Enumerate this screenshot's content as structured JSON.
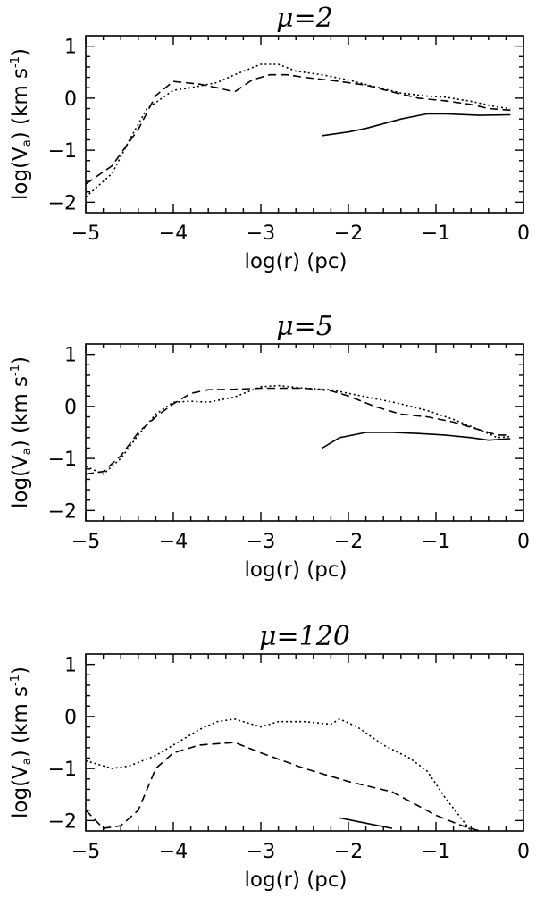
{
  "chart_data": [
    {
      "type": "line",
      "title": "μ=2",
      "xlabel": "log(r)  (pc)",
      "ylabel": "log(V",
      "ylabel_sub": "a",
      "ylabel_tail": ")  (km s",
      "ylabel_sup": "-1",
      "ylabel_end": ")",
      "xlim": [
        -5,
        0
      ],
      "ylim": [
        -2.2,
        1.2
      ],
      "xticks": [
        -5,
        -4,
        -3,
        -2,
        -1,
        0
      ],
      "xtick_labels": [
        "−5",
        "−4",
        "−3",
        "−2",
        "−1",
        "0"
      ],
      "yticks": [
        -2,
        -1,
        0,
        1
      ],
      "ytick_labels": [
        "−2",
        "−1",
        "0",
        "1"
      ],
      "grid": false,
      "series": [
        {
          "style": "solid",
          "x": [
            -2.3,
            -2.0,
            -1.8,
            -1.4,
            -1.1,
            -0.9,
            -0.5,
            -0.15
          ],
          "y": [
            -0.72,
            -0.65,
            -0.58,
            -0.4,
            -0.3,
            -0.3,
            -0.33,
            -0.32
          ]
        },
        {
          "style": "dashed",
          "x": [
            -5.0,
            -4.7,
            -4.4,
            -4.2,
            -4.0,
            -3.7,
            -3.5,
            -3.3,
            -3.1,
            -2.9,
            -2.7,
            -2.5,
            -2.1,
            -1.8,
            -1.5,
            -1.2,
            -0.9,
            -0.6,
            -0.4,
            -0.15
          ],
          "y": [
            -1.65,
            -1.3,
            -0.6,
            0.05,
            0.32,
            0.27,
            0.2,
            0.12,
            0.35,
            0.45,
            0.45,
            0.4,
            0.32,
            0.25,
            0.12,
            0.0,
            -0.05,
            -0.12,
            -0.2,
            -0.23
          ]
        },
        {
          "style": "dotted",
          "x": [
            -5.0,
            -4.7,
            -4.5,
            -4.3,
            -4.0,
            -3.8,
            -3.5,
            -3.3,
            -3.0,
            -2.8,
            -2.6,
            -2.3,
            -2.0,
            -1.7,
            -1.4,
            -1.1,
            -0.9,
            -0.6,
            -0.3,
            -0.15
          ],
          "y": [
            -1.9,
            -1.45,
            -0.8,
            -0.2,
            0.15,
            0.2,
            0.3,
            0.45,
            0.65,
            0.65,
            0.52,
            0.45,
            0.35,
            0.22,
            0.1,
            0.04,
            0.02,
            -0.06,
            -0.17,
            -0.2
          ]
        }
      ]
    },
    {
      "type": "line",
      "title": "μ=5",
      "xlabel": "log(r)  (pc)",
      "ylabel": "log(V",
      "ylabel_sub": "a",
      "ylabel_tail": ")  (km s",
      "ylabel_sup": "-1",
      "ylabel_end": ")",
      "xlim": [
        -5,
        0
      ],
      "ylim": [
        -2.2,
        1.2
      ],
      "xticks": [
        -5,
        -4,
        -3,
        -2,
        -1,
        0
      ],
      "xtick_labels": [
        "−5",
        "−4",
        "−3",
        "−2",
        "−1",
        "0"
      ],
      "yticks": [
        -2,
        -1,
        0,
        1
      ],
      "ytick_labels": [
        "−2",
        "−1",
        "0",
        "1"
      ],
      "grid": false,
      "series": [
        {
          "style": "solid",
          "x": [
            -2.3,
            -2.1,
            -1.8,
            -1.5,
            -1.2,
            -0.9,
            -0.6,
            -0.4,
            -0.15
          ],
          "y": [
            -0.8,
            -0.6,
            -0.5,
            -0.5,
            -0.52,
            -0.55,
            -0.6,
            -0.65,
            -0.62
          ]
        },
        {
          "style": "dashed",
          "x": [
            -5.0,
            -4.8,
            -4.6,
            -4.4,
            -4.2,
            -4.0,
            -3.8,
            -3.6,
            -3.3,
            -3.0,
            -2.8,
            -2.5,
            -2.2,
            -2.0,
            -1.7,
            -1.4,
            -1.1,
            -0.8,
            -0.5,
            -0.3,
            -0.15
          ],
          "y": [
            -1.3,
            -1.25,
            -0.95,
            -0.5,
            -0.2,
            0.05,
            0.25,
            0.32,
            0.33,
            0.35,
            0.35,
            0.35,
            0.3,
            0.2,
            0.0,
            -0.15,
            -0.2,
            -0.3,
            -0.45,
            -0.55,
            -0.55
          ]
        },
        {
          "style": "dotted",
          "x": [
            -5.0,
            -4.8,
            -4.6,
            -4.4,
            -4.2,
            -4.0,
            -3.8,
            -3.6,
            -3.3,
            -3.0,
            -2.8,
            -2.5,
            -2.2,
            -2.0,
            -1.7,
            -1.4,
            -1.1,
            -0.8,
            -0.5,
            -0.3,
            -0.15
          ],
          "y": [
            -1.15,
            -1.3,
            -1.0,
            -0.55,
            -0.15,
            0.08,
            0.1,
            0.08,
            0.18,
            0.38,
            0.4,
            0.35,
            0.32,
            0.25,
            0.15,
            0.05,
            -0.08,
            -0.25,
            -0.45,
            -0.6,
            -0.58
          ]
        }
      ]
    },
    {
      "type": "line",
      "title": "μ=120",
      "xlabel": "log(r)  (pc)",
      "ylabel": "log(V",
      "ylabel_sub": "a",
      "ylabel_tail": ")  (km s",
      "ylabel_sup": "-1",
      "ylabel_end": ")",
      "xlim": [
        -5,
        0
      ],
      "ylim": [
        -2.2,
        1.2
      ],
      "xticks": [
        -5,
        -4,
        -3,
        -2,
        -1,
        0
      ],
      "xtick_labels": [
        "−5",
        "−4",
        "−3",
        "−2",
        "−1",
        "0"
      ],
      "yticks": [
        -2,
        -1,
        0,
        1
      ],
      "ytick_labels": [
        "−2",
        "−1",
        "0",
        "1"
      ],
      "grid": false,
      "series": [
        {
          "style": "solid",
          "x": [
            -2.1,
            -1.8,
            -1.5
          ],
          "y": [
            -1.95,
            -2.05,
            -2.15
          ]
        },
        {
          "style": "dashed",
          "x": [
            -5.0,
            -4.8,
            -4.6,
            -4.4,
            -4.2,
            -4.0,
            -3.7,
            -3.3,
            -3.0,
            -2.5,
            -2.0,
            -1.5,
            -1.0,
            -0.7,
            -0.5
          ],
          "y": [
            -1.8,
            -2.15,
            -2.1,
            -1.8,
            -1.0,
            -0.7,
            -0.55,
            -0.5,
            -0.7,
            -1.0,
            -1.25,
            -1.45,
            -1.9,
            -2.1,
            -2.2
          ]
        },
        {
          "style": "dotted",
          "x": [
            -5.0,
            -4.7,
            -4.5,
            -4.2,
            -4.0,
            -3.7,
            -3.5,
            -3.3,
            -3.0,
            -2.8,
            -2.5,
            -2.2,
            -2.1,
            -1.9,
            -1.6,
            -1.3,
            -1.1,
            -0.9,
            -0.6
          ],
          "y": [
            -0.85,
            -1.0,
            -0.95,
            -0.75,
            -0.55,
            -0.25,
            -0.1,
            -0.05,
            -0.2,
            -0.1,
            -0.1,
            -0.15,
            -0.05,
            -0.2,
            -0.55,
            -0.8,
            -1.05,
            -1.55,
            -2.2
          ]
        }
      ]
    }
  ]
}
